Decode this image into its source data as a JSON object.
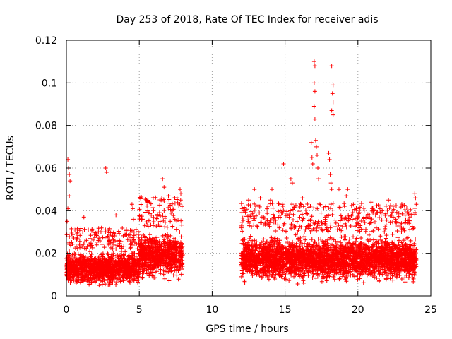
{
  "chart_data": {
    "type": "scatter",
    "title": "Day 253 of 2018, Rate Of TEC Index for receiver adis",
    "xlabel": "GPS time / hours",
    "ylabel": "ROTI / TECUs",
    "xlim": [
      0,
      25
    ],
    "ylim": [
      0,
      0.12
    ],
    "xticks": [
      0,
      5,
      10,
      15,
      20,
      25
    ],
    "xtick_labels": [
      "0",
      "5",
      "10",
      "15",
      "20",
      "25"
    ],
    "yticks": [
      0,
      0.02,
      0.04,
      0.06,
      0.08,
      0.1,
      0.12
    ],
    "ytick_labels": [
      "0",
      "0.02",
      "0.04",
      "0.06",
      "0.08",
      "0.1",
      "0.12"
    ],
    "grid": true,
    "marker": "+",
    "color": "#ff0000",
    "data_gap_hours": [
      8.0,
      12.0
    ],
    "dense_bands": [
      {
        "x_from": 0.0,
        "x_to": 5.0,
        "y_low": 0.004,
        "y_high": 0.022
      },
      {
        "x_from": 5.0,
        "x_to": 8.0,
        "y_low": 0.006,
        "y_high": 0.032
      },
      {
        "x_from": 12.0,
        "x_to": 24.0,
        "y_low": 0.005,
        "y_high": 0.03
      }
    ],
    "outliers": [
      [
        0.1,
        0.064
      ],
      [
        0.15,
        0.06
      ],
      [
        0.2,
        0.057
      ],
      [
        0.25,
        0.054
      ],
      [
        0.2,
        0.047
      ],
      [
        0.1,
        0.041
      ],
      [
        0.05,
        0.035
      ],
      [
        1.2,
        0.037
      ],
      [
        2.7,
        0.06
      ],
      [
        2.75,
        0.058
      ],
      [
        3.4,
        0.038
      ],
      [
        4.5,
        0.043
      ],
      [
        4.55,
        0.041
      ],
      [
        4.6,
        0.036
      ],
      [
        5.5,
        0.045
      ],
      [
        6.6,
        0.055
      ],
      [
        6.7,
        0.051
      ],
      [
        7.0,
        0.047
      ],
      [
        7.8,
        0.05
      ],
      [
        7.85,
        0.048
      ],
      [
        12.5,
        0.045
      ],
      [
        12.9,
        0.05
      ],
      [
        13.3,
        0.046
      ],
      [
        14.0,
        0.045
      ],
      [
        14.1,
        0.05
      ],
      [
        14.9,
        0.062
      ],
      [
        15.4,
        0.055
      ],
      [
        15.5,
        0.053
      ],
      [
        16.2,
        0.046
      ],
      [
        16.8,
        0.072
      ],
      [
        16.85,
        0.065
      ],
      [
        16.9,
        0.062
      ],
      [
        17.0,
        0.11
      ],
      [
        17.05,
        0.108
      ],
      [
        17.0,
        0.1
      ],
      [
        17.05,
        0.096
      ],
      [
        17.0,
        0.089
      ],
      [
        17.05,
        0.083
      ],
      [
        17.1,
        0.073
      ],
      [
        17.15,
        0.07
      ],
      [
        17.2,
        0.066
      ],
      [
        17.25,
        0.06
      ],
      [
        17.3,
        0.055
      ],
      [
        18.2,
        0.108
      ],
      [
        18.3,
        0.099
      ],
      [
        18.25,
        0.095
      ],
      [
        18.3,
        0.091
      ],
      [
        18.2,
        0.087
      ],
      [
        18.3,
        0.085
      ],
      [
        18.0,
        0.067
      ],
      [
        18.05,
        0.064
      ],
      [
        18.1,
        0.057
      ],
      [
        18.15,
        0.053
      ],
      [
        18.2,
        0.05
      ],
      [
        18.7,
        0.05
      ],
      [
        19.2,
        0.047
      ],
      [
        19.3,
        0.05
      ],
      [
        20.9,
        0.044
      ],
      [
        22.1,
        0.045
      ],
      [
        23.9,
        0.048
      ],
      [
        23.95,
        0.046
      ],
      [
        24.0,
        0.043
      ]
    ]
  }
}
